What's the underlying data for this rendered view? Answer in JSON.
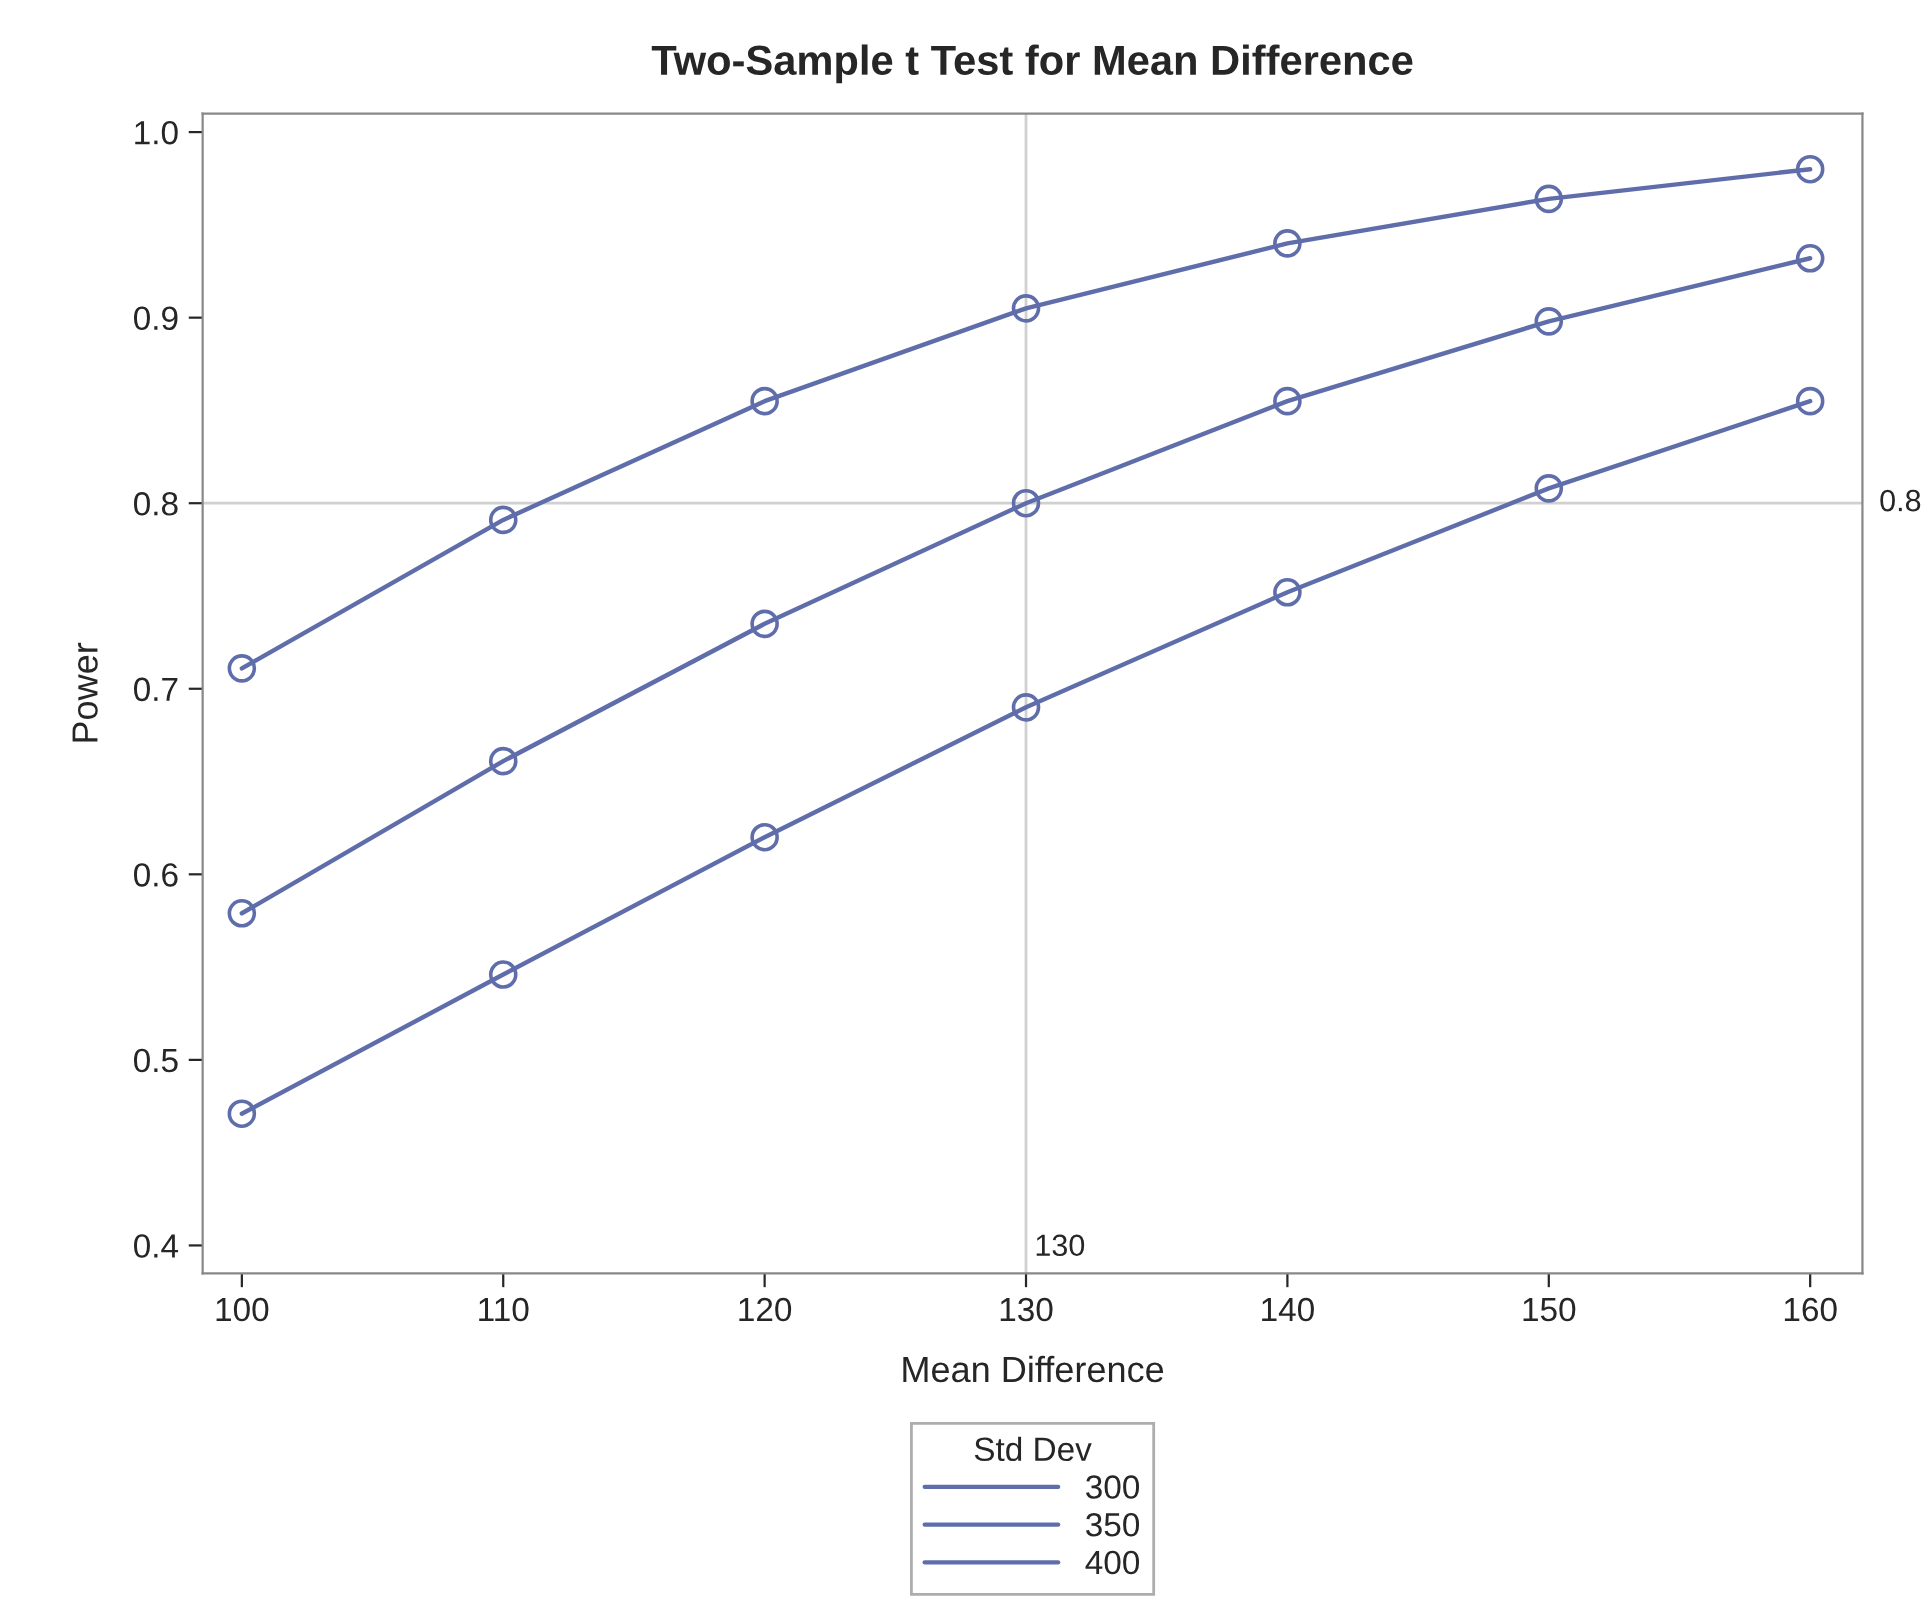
{
  "chart_data": {
    "type": "line",
    "title": "Two-Sample t Test for Mean Difference",
    "xlabel": "Mean Difference",
    "ylabel": "Power",
    "legend_title": "Std Dev",
    "x": [
      100,
      110,
      120,
      130,
      140,
      150,
      160
    ],
    "series": [
      {
        "name": "300",
        "color": "#5f6eab",
        "values": [
          0.711,
          0.791,
          0.855,
          0.905,
          0.94,
          0.964,
          0.98
        ]
      },
      {
        "name": "350",
        "color": "#5f6eab",
        "values": [
          0.579,
          0.661,
          0.735,
          0.8,
          0.855,
          0.898,
          0.932
        ]
      },
      {
        "name": "400",
        "color": "#5f6eab",
        "values": [
          0.471,
          0.546,
          0.62,
          0.69,
          0.752,
          0.808,
          0.855
        ]
      }
    ],
    "xlim": [
      98.5,
      162
    ],
    "ylim": [
      0.385,
      1.01
    ],
    "xticks": [
      100,
      110,
      120,
      130,
      140,
      150,
      160
    ],
    "yticks": [
      0.4,
      0.5,
      0.6,
      0.7,
      0.8,
      0.9,
      {
        "value": 1,
        "label": "1.0"
      }
    ],
    "ref_lines": [
      {
        "axis": "x",
        "value": 130,
        "label": "130",
        "color": "#d0d0d0"
      },
      {
        "axis": "y",
        "value": 0.8,
        "label": "0.8",
        "color": "#d0d0d0"
      }
    ],
    "marker": "circle",
    "line_style": "solid",
    "grid": false,
    "legend": "bottom"
  }
}
